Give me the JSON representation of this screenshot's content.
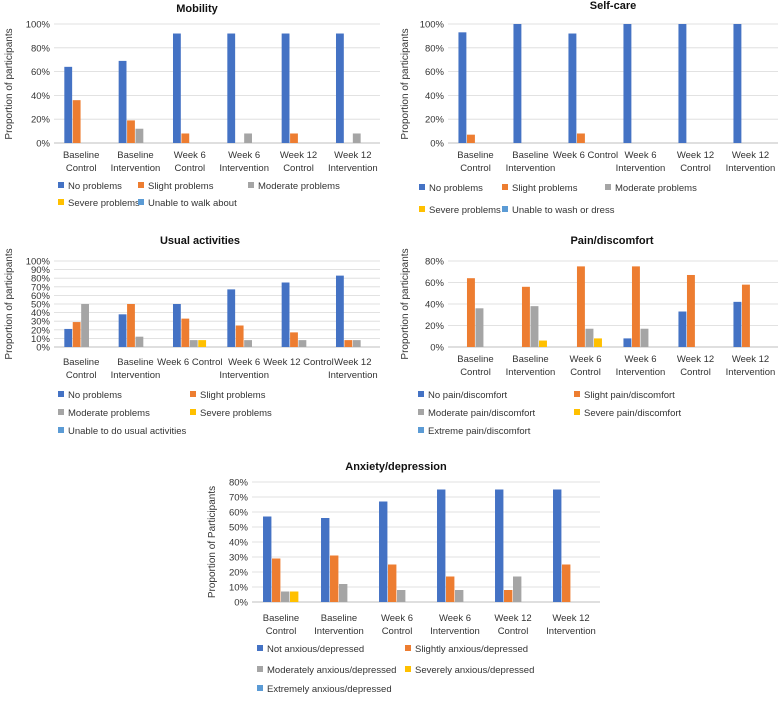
{
  "palette": [
    "#4472C4",
    "#ED7D31",
    "#A5A5A5",
    "#FFC000",
    "#5B9BD5"
  ],
  "chart_data": [
    {
      "type": "bar",
      "title": "Mobility",
      "ylabel": "Proportion of participants",
      "ylim": [
        0,
        100
      ],
      "yticks": [
        "0%",
        "20%",
        "40%",
        "60%",
        "80%",
        "100%"
      ],
      "categories": [
        [
          "Baseline",
          "Control"
        ],
        [
          "Baseline",
          "Intervention"
        ],
        [
          "Week 6",
          "Control"
        ],
        [
          "Week 6",
          "Intervention"
        ],
        [
          "Week 12",
          "Control"
        ],
        [
          "Week 12",
          "Intervention"
        ]
      ],
      "series": [
        {
          "name": "No problems",
          "values": [
            64,
            69,
            92,
            92,
            92,
            92
          ]
        },
        {
          "name": "Slight problems",
          "values": [
            36,
            19,
            8,
            0,
            8,
            0
          ]
        },
        {
          "name": "Moderate problems",
          "values": [
            0,
            12,
            0,
            8,
            0,
            8
          ]
        },
        {
          "name": "Severe problems",
          "values": [
            0,
            0,
            0,
            0,
            0,
            0
          ]
        },
        {
          "name": "Unable to walk about",
          "values": [
            0,
            0,
            0,
            0,
            0,
            0
          ]
        }
      ]
    },
    {
      "type": "bar",
      "title": "Self-care",
      "ylabel": "Proportion of participants",
      "ylim": [
        0,
        100
      ],
      "yticks": [
        "0%",
        "20%",
        "40%",
        "60%",
        "80%",
        "100%"
      ],
      "categories": [
        [
          "Baseline",
          "Control"
        ],
        [
          "Baseline",
          "Intervention"
        ],
        [
          "Week 6 Control"
        ],
        [
          "Week 6",
          "Intervention"
        ],
        [
          "Week 12",
          "Control"
        ],
        [
          "Week 12",
          "Intervention"
        ]
      ],
      "series": [
        {
          "name": "No problems",
          "values": [
            93,
            100,
            92,
            100,
            100,
            100
          ]
        },
        {
          "name": "Slight problems",
          "values": [
            7,
            0,
            8,
            0,
            0,
            0
          ]
        },
        {
          "name": "Moderate problems",
          "values": [
            0,
            0,
            0,
            0,
            0,
            0
          ]
        },
        {
          "name": "Severe problems",
          "values": [
            0,
            0,
            0,
            0,
            0,
            0
          ]
        },
        {
          "name": "Unable to wash or dress",
          "values": [
            0,
            0,
            0,
            0,
            0,
            0
          ]
        }
      ]
    },
    {
      "type": "bar",
      "title": "Usual activities",
      "ylabel": "Proportion of participants",
      "ylim": [
        0,
        100
      ],
      "yticks": [
        "0%",
        "10%",
        "20%",
        "30%",
        "40%",
        "50%",
        "60%",
        "70%",
        "80%",
        "90%",
        "100%"
      ],
      "categories": [
        [
          "Baseline",
          "Control"
        ],
        [
          "Baseline",
          "Intervention"
        ],
        [
          "Week 6 Control"
        ],
        [
          "Week 6",
          "Intervention"
        ],
        [
          "Week 12 Control"
        ],
        [
          "Week 12",
          "Intervention"
        ]
      ],
      "series": [
        {
          "name": "No problems",
          "values": [
            21,
            38,
            50,
            67,
            75,
            83
          ]
        },
        {
          "name": "Slight problems",
          "values": [
            29,
            50,
            33,
            25,
            17,
            8
          ]
        },
        {
          "name": "Moderate problems",
          "values": [
            50,
            12,
            8,
            8,
            8,
            8
          ]
        },
        {
          "name": "Severe problems",
          "values": [
            0,
            0,
            8,
            0,
            0,
            0
          ]
        },
        {
          "name": "Unable to do usual activities",
          "values": [
            0,
            0,
            0,
            0,
            0,
            0
          ]
        }
      ]
    },
    {
      "type": "bar",
      "title": "Pain/discomfort",
      "ylabel": "Proportion of participants",
      "ylim": [
        0,
        80
      ],
      "yticks": [
        "0%",
        "20%",
        "40%",
        "60%",
        "80%"
      ],
      "categories": [
        [
          "Baseline",
          "Control"
        ],
        [
          "Baseline",
          "Intervention"
        ],
        [
          "Week 6",
          "Control"
        ],
        [
          "Week 6",
          "Intervention"
        ],
        [
          "Week 12",
          "Control"
        ],
        [
          "Week 12",
          "Intervention"
        ]
      ],
      "series": [
        {
          "name": "No pain/discomfort",
          "values": [
            0,
            0,
            0,
            8,
            33,
            42
          ]
        },
        {
          "name": "Slight  pain/discomfort",
          "values": [
            64,
            56,
            75,
            75,
            67,
            58
          ]
        },
        {
          "name": "Moderate  pain/discomfort",
          "values": [
            36,
            38,
            17,
            17,
            0,
            0
          ]
        },
        {
          "name": "Severe  pain/discomfort",
          "values": [
            0,
            6,
            8,
            0,
            0,
            0
          ]
        },
        {
          "name": "Extreme pain/discomfort",
          "values": [
            0,
            0,
            0,
            0,
            0,
            0
          ]
        }
      ]
    },
    {
      "type": "bar",
      "title": "Anxiety/depression",
      "ylabel": "Proportion of Participants",
      "ylim": [
        0,
        80
      ],
      "yticks": [
        "0%",
        "10%",
        "20%",
        "30%",
        "40%",
        "50%",
        "60%",
        "70%",
        "80%"
      ],
      "categories": [
        [
          "Baseline",
          "Control"
        ],
        [
          "Baseline",
          "Intervention"
        ],
        [
          "Week 6",
          "Control"
        ],
        [
          "Week 6",
          "Intervention"
        ],
        [
          "Week 12",
          "Control"
        ],
        [
          "Week 12",
          "Intervention"
        ]
      ],
      "series": [
        {
          "name": "Not anxious/depressed",
          "values": [
            57,
            56,
            67,
            75,
            75,
            75
          ]
        },
        {
          "name": "Slightly anxious/depressed",
          "values": [
            29,
            31,
            25,
            17,
            8,
            25
          ]
        },
        {
          "name": "Moderately anxious/depressed",
          "values": [
            7,
            12,
            8,
            8,
            17,
            0
          ]
        },
        {
          "name": "Severely anxious/depressed",
          "values": [
            7,
            0,
            0,
            0,
            0,
            0
          ]
        },
        {
          "name": "Extremely anxious/depressed",
          "values": [
            0,
            0,
            0,
            0,
            0,
            0
          ]
        }
      ]
    }
  ]
}
